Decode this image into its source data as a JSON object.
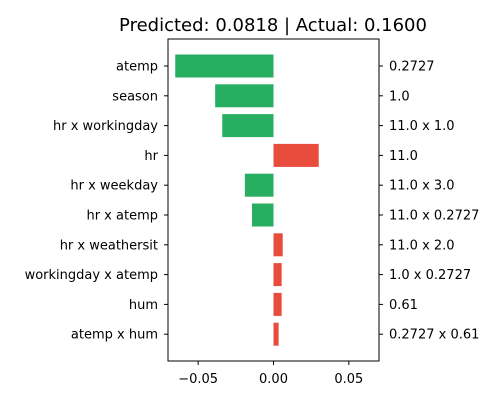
{
  "chart_data": {
    "type": "bar",
    "orientation": "horizontal",
    "title": "Predicted: 0.0818 | Actual: 0.1600",
    "xlabel": "",
    "ylabel": "",
    "xlim": [
      -0.07,
      0.07
    ],
    "xticks": [
      -0.05,
      0.0,
      0.05
    ],
    "xtick_labels": [
      "−0.05",
      "0.00",
      "0.05"
    ],
    "grid": false,
    "legend": "none",
    "colors": {
      "negative": "#27ae60",
      "positive": "#e74c3c"
    },
    "bars": [
      {
        "feature": "atemp",
        "value": -0.0652,
        "feature_value": "0.2727"
      },
      {
        "feature": "season",
        "value": -0.0387,
        "feature_value": "1.0"
      },
      {
        "feature": "hr x workingday",
        "value": -0.034,
        "feature_value": "11.0 x 1.0"
      },
      {
        "feature": "hr",
        "value": 0.03,
        "feature_value": "11.0"
      },
      {
        "feature": "hr x weekday",
        "value": -0.019,
        "feature_value": "11.0 x 3.0"
      },
      {
        "feature": "hr x atemp",
        "value": -0.0143,
        "feature_value": "11.0 x 0.2727"
      },
      {
        "feature": "hr x weathersit",
        "value": 0.0061,
        "feature_value": "11.0 x 2.0"
      },
      {
        "feature": "workingday x atemp",
        "value": 0.0054,
        "feature_value": "1.0 x 0.2727"
      },
      {
        "feature": "hum",
        "value": 0.0054,
        "feature_value": "0.61"
      },
      {
        "feature": "atemp x hum",
        "value": 0.0034,
        "feature_value": "0.2727 x 0.61"
      }
    ]
  }
}
